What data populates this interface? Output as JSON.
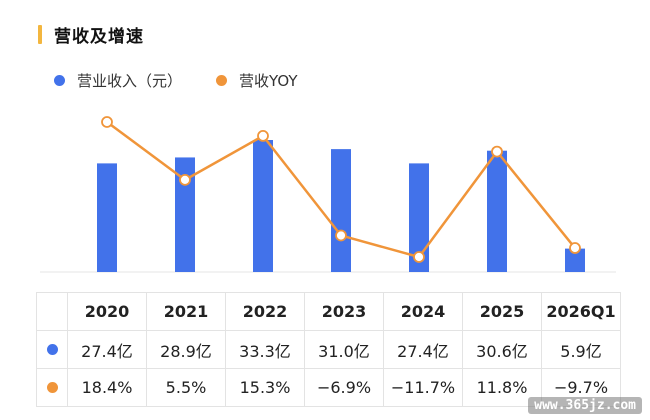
{
  "header": {
    "title": "营收及增速"
  },
  "colors": {
    "revenue": "#4272ea",
    "yoy": "#f0953a",
    "accent": "#f3b63f"
  },
  "chart_data": {
    "type": "bar",
    "categories": [
      "2020",
      "2021",
      "2022",
      "2023",
      "2024",
      "2025",
      "2026Q1"
    ],
    "series": [
      {
        "name": "营业收入（元）",
        "type": "bar",
        "values": [
          27.4,
          28.9,
          33.3,
          31.0,
          27.4,
          30.6,
          5.9
        ]
      },
      {
        "name": "营收YOY",
        "type": "line",
        "values": [
          18.4,
          5.5,
          15.3,
          -6.9,
          -11.7,
          11.8,
          -9.7
        ]
      }
    ],
    "title": "营收及增速"
  },
  "table": {
    "years": [
      "2020",
      "2021",
      "2022",
      "2023",
      "2024",
      "2025",
      "2026Q1"
    ],
    "revenue": [
      "27.4亿",
      "28.9亿",
      "33.3亿",
      "31.0亿",
      "27.4亿",
      "30.6亿",
      "5.9亿"
    ],
    "yoy": [
      "18.4%",
      "5.5%",
      "15.3%",
      "−6.9%",
      "−11.7%",
      "11.8%",
      "−9.7%"
    ]
  },
  "watermark": "www.365jz.com"
}
